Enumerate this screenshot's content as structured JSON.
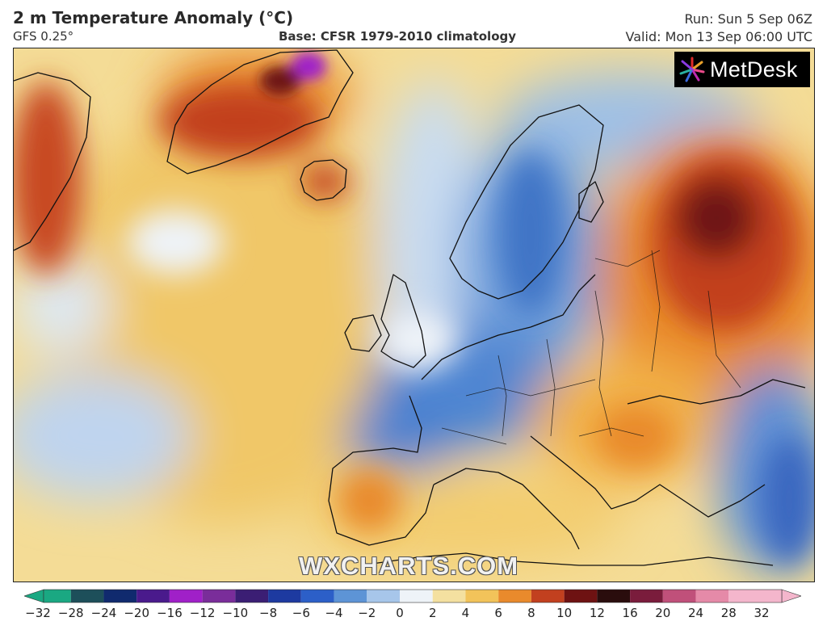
{
  "header": {
    "title": "2 m Temperature Anomaly (°C)",
    "model": "GFS 0.25°",
    "base": "Base: CFSR 1979-2010 climatology",
    "run": "Run: Sun 5 Sep 06Z",
    "valid": "Valid: Mon 13 Sep 06:00 UTC"
  },
  "branding": {
    "logo_text": "MetDesk",
    "watermark": "WXCHARTS.COM"
  },
  "colorbar": {
    "ticks": [
      "−32",
      "−28",
      "−24",
      "−20",
      "−16",
      "−12",
      "−10",
      "−8",
      "−6",
      "−4",
      "−2",
      "0",
      "2",
      "4",
      "6",
      "8",
      "10",
      "12",
      "16",
      "20",
      "24",
      "28",
      "32"
    ],
    "colors": [
      "#1aa882",
      "#1d4f5a",
      "#102a6e",
      "#4a1a8c",
      "#a020c8",
      "#7a2d9a",
      "#3b1e74",
      "#1d3aa0",
      "#2c5fc8",
      "#5d94d6",
      "#a7c6ea",
      "#eef3f8",
      "#f4e0a0",
      "#f2c35a",
      "#e98a2c",
      "#c2401f",
      "#6e1212",
      "#2a0d0d",
      "#7a1c3c",
      "#c0507a",
      "#e58aa8",
      "#f4b6cc"
    ],
    "palette": {
      "cold_strong": "#2c5fc8",
      "cold": "#5d94d6",
      "cool": "#a7c6ea",
      "neutral": "#eef3f8",
      "warm": "#f2c35a",
      "hot": "#e98a2c",
      "very_hot": "#c2401f",
      "extreme": "#6e1212"
    }
  }
}
